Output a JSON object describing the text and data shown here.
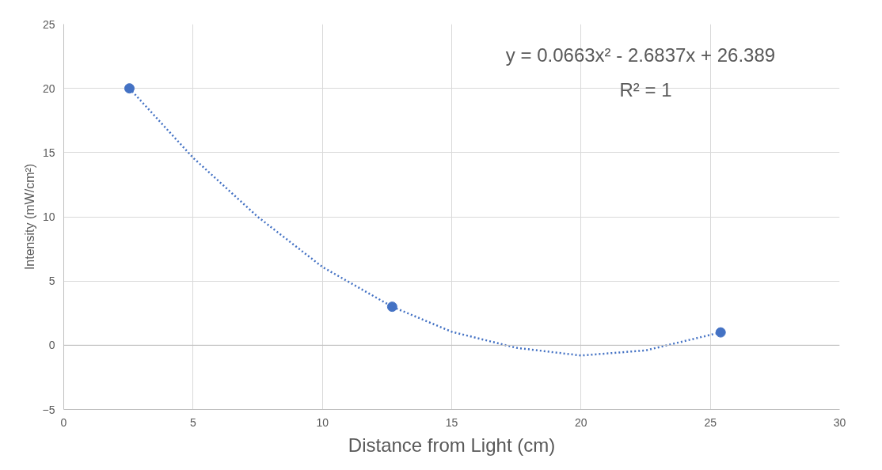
{
  "chart_data": {
    "type": "scatter",
    "xlabel": "Distance from Light (cm)",
    "ylabel": "Intensity (mW/cm²)",
    "annotations": [
      "y = 0.0663x² - 2.6837x + 26.389",
      "R² = 1"
    ],
    "xlim": [
      0,
      30
    ],
    "xticks": [
      0,
      5,
      10,
      15,
      20,
      25,
      30
    ],
    "ylim": [
      -5,
      25
    ],
    "yticks": [
      -5,
      0,
      5,
      10,
      15,
      20,
      25
    ],
    "grid": true,
    "series": [
      {
        "type": "scatter",
        "color": "#4472c4",
        "marker": "circle",
        "x": [
          2.54,
          12.7,
          25.4
        ],
        "values": [
          20,
          3,
          1
        ]
      },
      {
        "type": "line",
        "color": "#4472c4",
        "line_style": "dotted",
        "marker": "none",
        "x": [
          2.54,
          5,
          7.5,
          10,
          12.7,
          15,
          17.5,
          20,
          22.5,
          25.4
        ],
        "values": [
          20,
          14.6,
          10.0,
          6.1,
          3,
          1.05,
          -0.2,
          -0.8,
          -0.4,
          1
        ]
      }
    ]
  }
}
